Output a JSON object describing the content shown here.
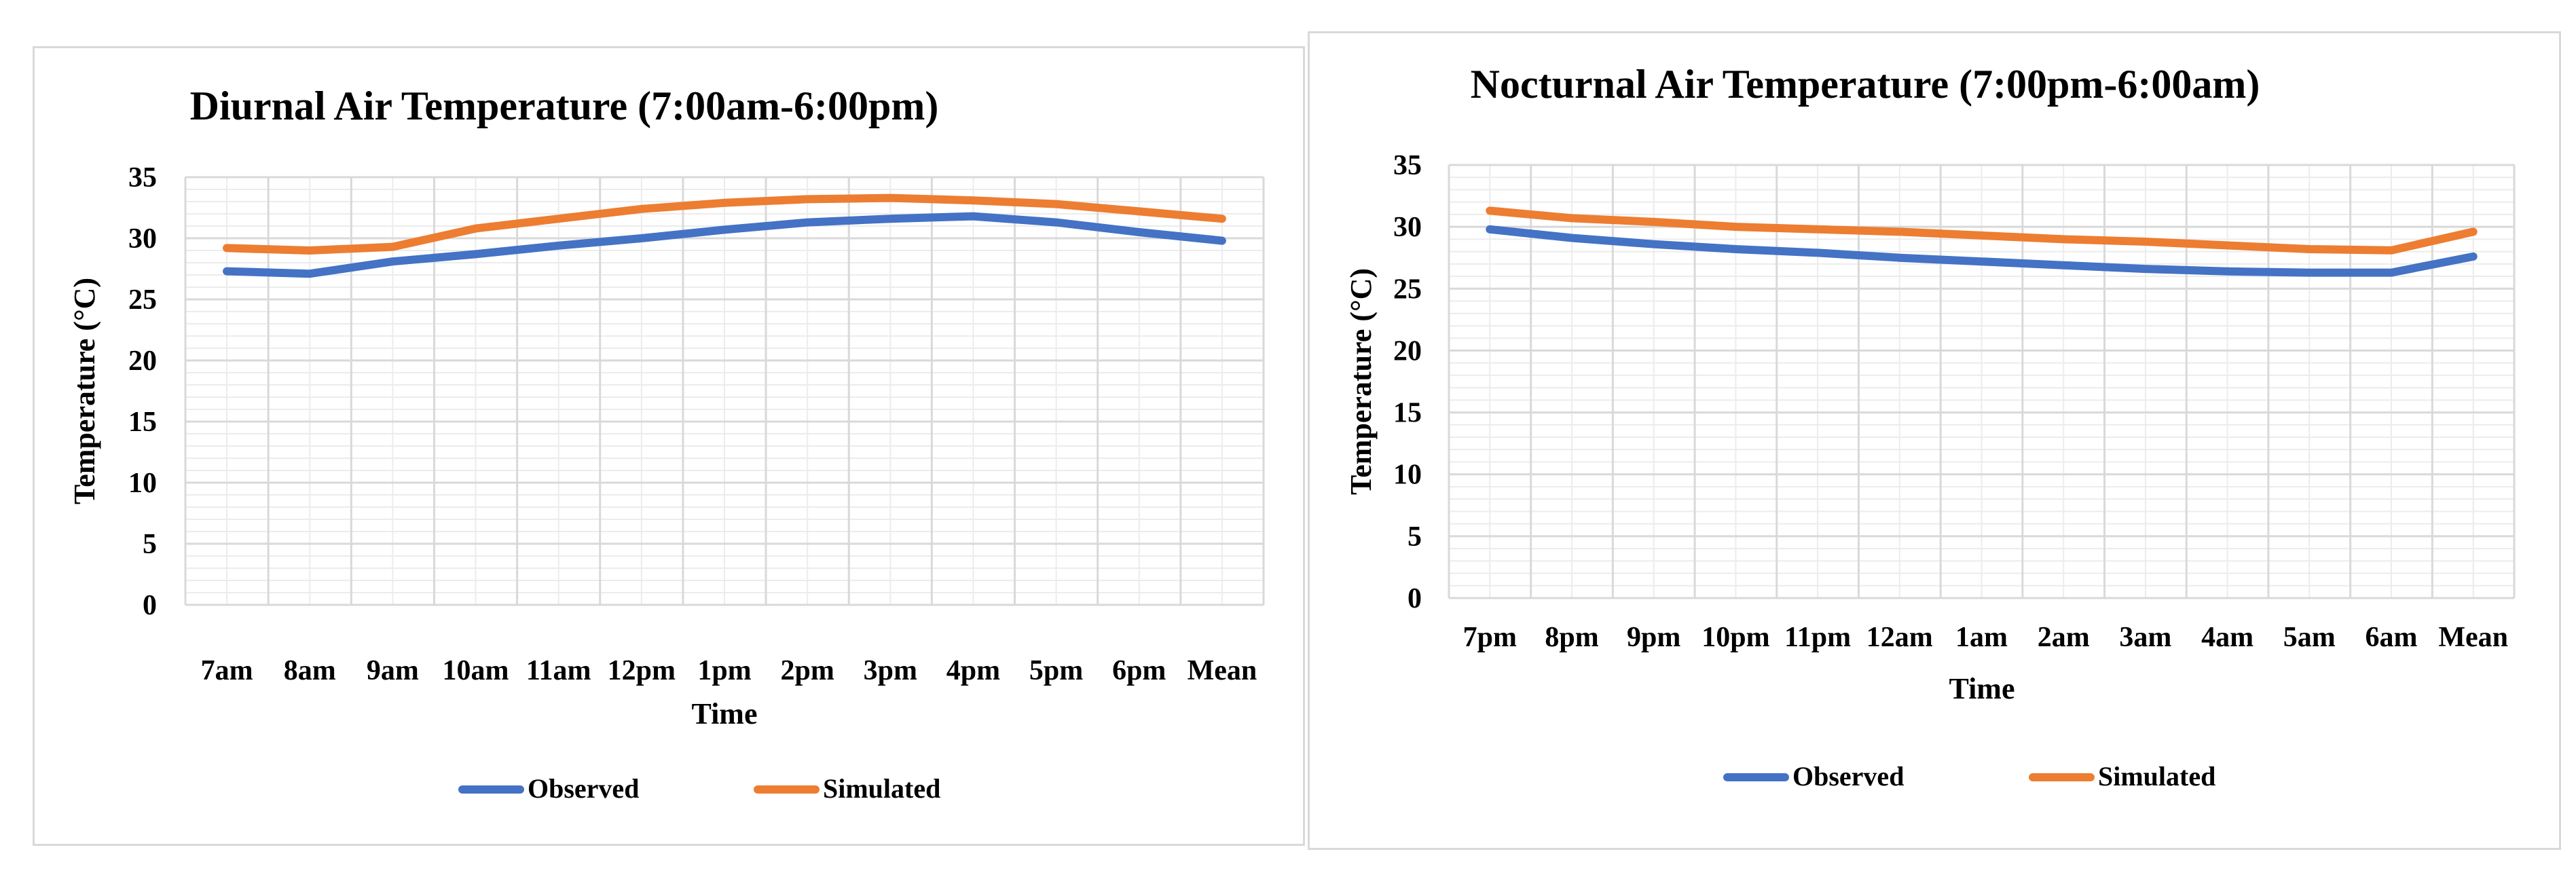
{
  "chart_data": [
    {
      "type": "line",
      "title": "Diurnal Air Temperature  (7:00am-6:00pm)",
      "xlabel": "Time",
      "ylabel": "Temperature (°C)",
      "ylim": [
        0,
        35
      ],
      "yticks": [
        0,
        5,
        10,
        15,
        20,
        25,
        30,
        35
      ],
      "grid": true,
      "legend_position": "bottom",
      "categories": [
        "7am",
        "8am",
        "9am",
        "10am",
        "11am",
        "12pm",
        "1pm",
        "2pm",
        "3pm",
        "4pm",
        "5pm",
        "6pm",
        "Mean"
      ],
      "series": [
        {
          "name": "Observed",
          "color": "#4472c4",
          "values": [
            27.3,
            27.1,
            28.1,
            28.7,
            29.4,
            30.0,
            30.7,
            31.3,
            31.6,
            31.8,
            31.3,
            30.5,
            29.8
          ]
        },
        {
          "name": "Simulated",
          "color": "#ed7d31",
          "values": [
            29.2,
            29.0,
            29.3,
            30.8,
            31.6,
            32.4,
            32.9,
            33.2,
            33.3,
            33.1,
            32.8,
            32.2,
            31.6
          ]
        }
      ]
    },
    {
      "type": "line",
      "title": "Nocturnal Air Temperature  (7:00pm-6:00am)",
      "xlabel": "Time",
      "ylabel": "Temperature (°C)",
      "ylim": [
        0,
        35
      ],
      "yticks": [
        0,
        5,
        10,
        15,
        20,
        25,
        30,
        35
      ],
      "grid": true,
      "legend_position": "bottom",
      "categories": [
        "7pm",
        "8pm",
        "9pm",
        "10pm",
        "11pm",
        "12am",
        "1am",
        "2am",
        "3am",
        "4am",
        "5am",
        "6am",
        "Mean"
      ],
      "series": [
        {
          "name": "Observed",
          "color": "#4472c4",
          "values": [
            29.8,
            29.1,
            28.6,
            28.2,
            27.9,
            27.5,
            27.2,
            26.9,
            26.6,
            26.4,
            26.3,
            26.3,
            27.6
          ]
        },
        {
          "name": "Simulated",
          "color": "#ed7d31",
          "values": [
            31.3,
            30.7,
            30.4,
            30.0,
            29.8,
            29.6,
            29.3,
            29.0,
            28.8,
            28.5,
            28.2,
            28.1,
            29.6
          ]
        }
      ]
    }
  ]
}
